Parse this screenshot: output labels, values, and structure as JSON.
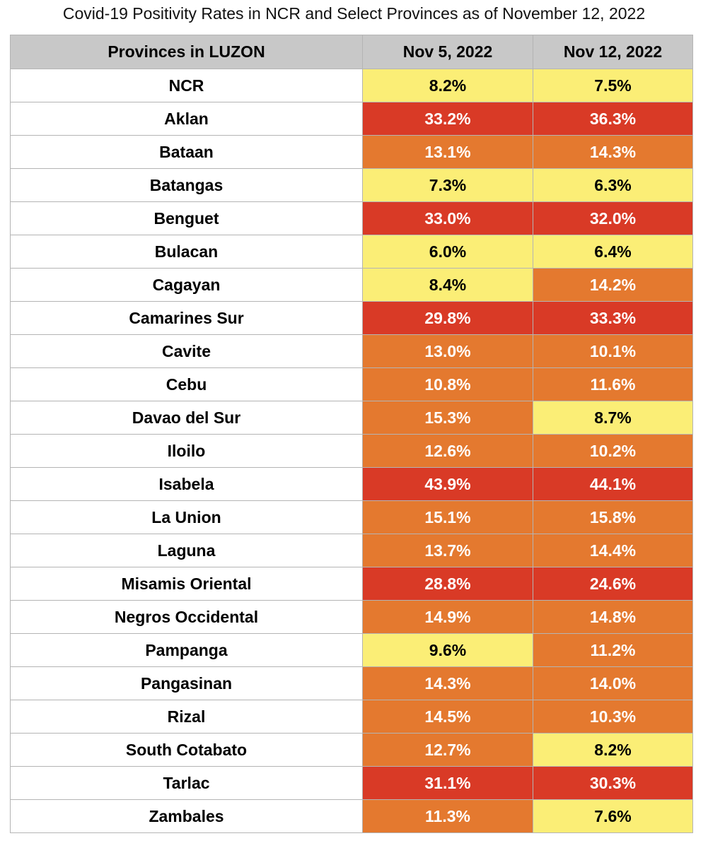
{
  "title": "Covid-19 Positivity Rates in NCR and Select Provinces as of November 12, 2022",
  "colors": {
    "header_bg": "#c8c8c8",
    "yellow": "#fbee76",
    "orange": "#e4792f",
    "red": "#d93a26",
    "text_dark": "#000000",
    "text_light": "#ffffff"
  },
  "chart_data": {
    "type": "table",
    "title": "Covid-19 Positivity Rates in NCR and Select Provinces as of November 12, 2022",
    "columns": [
      "Provinces in LUZON",
      "Nov 5, 2022",
      "Nov 12, 2022"
    ],
    "rows": [
      {
        "province": "NCR",
        "nov5": "8.2%",
        "nov12": "7.5%",
        "nov5_level": "yellow",
        "nov12_level": "yellow"
      },
      {
        "province": "Aklan",
        "nov5": "33.2%",
        "nov12": "36.3%",
        "nov5_level": "red",
        "nov12_level": "red"
      },
      {
        "province": "Bataan",
        "nov5": "13.1%",
        "nov12": "14.3%",
        "nov5_level": "orange",
        "nov12_level": "orange"
      },
      {
        "province": "Batangas",
        "nov5": "7.3%",
        "nov12": "6.3%",
        "nov5_level": "yellow",
        "nov12_level": "yellow"
      },
      {
        "province": "Benguet",
        "nov5": "33.0%",
        "nov12": "32.0%",
        "nov5_level": "red",
        "nov12_level": "red"
      },
      {
        "province": "Bulacan",
        "nov5": "6.0%",
        "nov12": "6.4%",
        "nov5_level": "yellow",
        "nov12_level": "yellow"
      },
      {
        "province": "Cagayan",
        "nov5": "8.4%",
        "nov12": "14.2%",
        "nov5_level": "yellow",
        "nov12_level": "orange"
      },
      {
        "province": "Camarines Sur",
        "nov5": "29.8%",
        "nov12": "33.3%",
        "nov5_level": "red",
        "nov12_level": "red"
      },
      {
        "province": "Cavite",
        "nov5": "13.0%",
        "nov12": "10.1%",
        "nov5_level": "orange",
        "nov12_level": "orange"
      },
      {
        "province": "Cebu",
        "nov5": "10.8%",
        "nov12": "11.6%",
        "nov5_level": "orange",
        "nov12_level": "orange"
      },
      {
        "province": "Davao del Sur",
        "nov5": "15.3%",
        "nov12": "8.7%",
        "nov5_level": "orange",
        "nov12_level": "yellow"
      },
      {
        "province": "Iloilo",
        "nov5": "12.6%",
        "nov12": "10.2%",
        "nov5_level": "orange",
        "nov12_level": "orange"
      },
      {
        "province": "Isabela",
        "nov5": "43.9%",
        "nov12": "44.1%",
        "nov5_level": "red",
        "nov12_level": "red"
      },
      {
        "province": "La Union",
        "nov5": "15.1%",
        "nov12": "15.8%",
        "nov5_level": "orange",
        "nov12_level": "orange"
      },
      {
        "province": "Laguna",
        "nov5": "13.7%",
        "nov12": "14.4%",
        "nov5_level": "orange",
        "nov12_level": "orange"
      },
      {
        "province": "Misamis Oriental",
        "nov5": "28.8%",
        "nov12": "24.6%",
        "nov5_level": "red",
        "nov12_level": "red"
      },
      {
        "province": "Negros Occidental",
        "nov5": "14.9%",
        "nov12": "14.8%",
        "nov5_level": "orange",
        "nov12_level": "orange"
      },
      {
        "province": "Pampanga",
        "nov5": "9.6%",
        "nov12": "11.2%",
        "nov5_level": "yellow",
        "nov12_level": "orange"
      },
      {
        "province": "Pangasinan",
        "nov5": "14.3%",
        "nov12": "14.0%",
        "nov5_level": "orange",
        "nov12_level": "orange"
      },
      {
        "province": "Rizal",
        "nov5": "14.5%",
        "nov12": "10.3%",
        "nov5_level": "orange",
        "nov12_level": "orange"
      },
      {
        "province": "South Cotabato",
        "nov5": "12.7%",
        "nov12": "8.2%",
        "nov5_level": "orange",
        "nov12_level": "yellow"
      },
      {
        "province": "Tarlac",
        "nov5": "31.1%",
        "nov12": "30.3%",
        "nov5_level": "red",
        "nov12_level": "red"
      },
      {
        "province": "Zambales",
        "nov5": "11.3%",
        "nov12": "7.6%",
        "nov5_level": "orange",
        "nov12_level": "yellow"
      }
    ]
  }
}
